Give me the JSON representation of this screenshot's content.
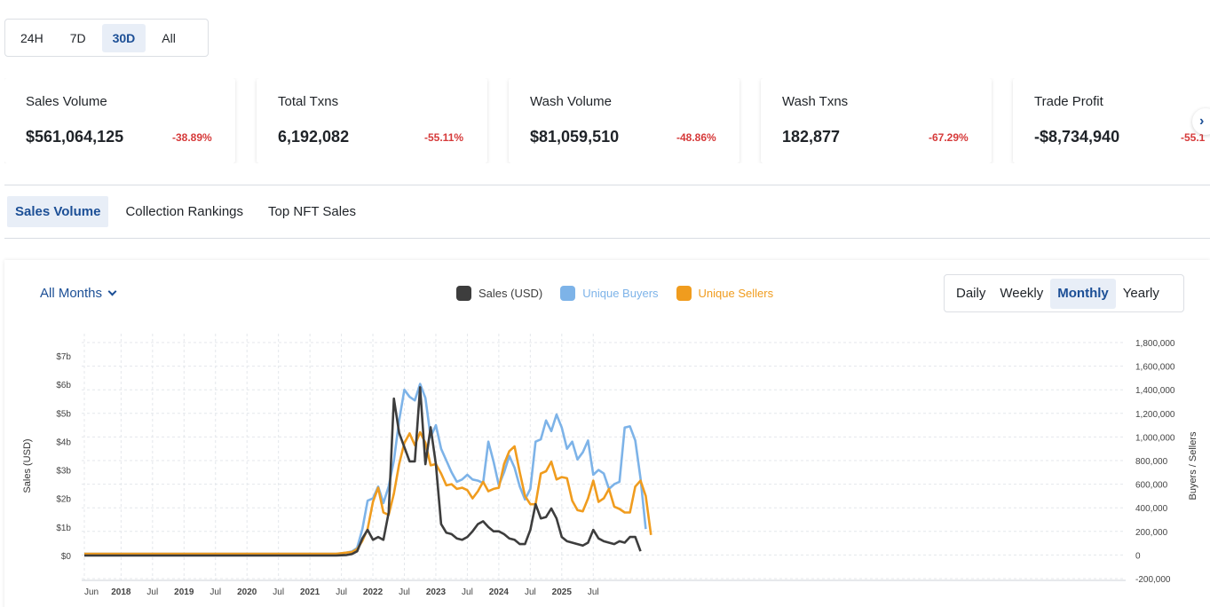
{
  "period_buttons": [
    {
      "label": "24H",
      "active": false
    },
    {
      "label": "7D",
      "active": false
    },
    {
      "label": "30D",
      "active": true
    },
    {
      "label": "All",
      "active": false
    }
  ],
  "stats": [
    {
      "title": "Sales Volume",
      "value": "$561,064,125",
      "change": "-38.89%"
    },
    {
      "title": "Total Txns",
      "value": "6,192,082",
      "change": "-55.11%"
    },
    {
      "title": "Wash Volume",
      "value": "$81,059,510",
      "change": "-48.86%"
    },
    {
      "title": "Wash Txns",
      "value": "182,877",
      "change": "-67.29%"
    },
    {
      "title": "Trade Profit",
      "value": "-$8,734,940",
      "change": "-55.1"
    }
  ],
  "next_arrow_icon": "chevron-right-icon",
  "tabs": [
    {
      "label": "Sales Volume",
      "active": true
    },
    {
      "label": "Collection Rankings",
      "active": false
    },
    {
      "label": "Top NFT Sales",
      "active": false
    }
  ],
  "months_filter": "All Months",
  "granularity": [
    {
      "label": "Daily",
      "active": false
    },
    {
      "label": "Weekly",
      "active": false
    },
    {
      "label": "Monthly",
      "active": true
    },
    {
      "label": "Yearly",
      "active": false
    }
  ],
  "colors": {
    "sales": "#3d3d3d",
    "buyers": "#7db3e8",
    "sellers": "#f09c1e",
    "negative": "#d63a3a",
    "accent": "#1c4f96"
  },
  "chart_data": {
    "type": "line",
    "x_tick_labels": [
      "Jun",
      "2018",
      "Jul",
      "2019",
      "Jul",
      "2020",
      "Jul",
      "2021",
      "Jul",
      "2022",
      "Jul",
      "2023",
      "Jul",
      "2024",
      "Jul",
      "2025",
      "Jul"
    ],
    "y_left_label": "Sales (USD)",
    "y_left_ticks": [
      "$0",
      "$1b",
      "$2b",
      "$3b",
      "$4b",
      "$5b",
      "$6b",
      "$7b"
    ],
    "y_left_range": [
      0,
      7000000000
    ],
    "y_right_label": "Buyers / Sellers",
    "y_right_ticks": [
      "-200,000",
      "0",
      "200,000",
      "400,000",
      "600,000",
      "800,000",
      "1,000,000",
      "1,200,000",
      "1,400,000",
      "1,600,000",
      "1,800,000"
    ],
    "y_right_range": [
      -200000,
      1800000
    ],
    "x_start": "2017-06",
    "series": [
      {
        "name": "Sales (USD)",
        "axis": "left",
        "color": "#3d3d3d",
        "points": [
          [
            0,
            0
          ],
          [
            48,
            0
          ],
          [
            49,
            0.01
          ],
          [
            50,
            0.02
          ],
          [
            51,
            0.05
          ],
          [
            52,
            0.15
          ],
          [
            53,
            0.6
          ],
          [
            54,
            0.9
          ],
          [
            55,
            0.55
          ],
          [
            56,
            0.65
          ],
          [
            57,
            0.55
          ],
          [
            58,
            1.5
          ],
          [
            59,
            5.5
          ],
          [
            60,
            4.3
          ],
          [
            61,
            3.8
          ],
          [
            62,
            3.3
          ],
          [
            63,
            3.3
          ],
          [
            64,
            5.9
          ],
          [
            65,
            3.2
          ],
          [
            66,
            4.5
          ],
          [
            67,
            3.2
          ],
          [
            68,
            1.1
          ],
          [
            69,
            0.8
          ],
          [
            70,
            0.75
          ],
          [
            71,
            0.6
          ],
          [
            72,
            0.55
          ],
          [
            73,
            0.65
          ],
          [
            74,
            0.85
          ],
          [
            75,
            1.1
          ],
          [
            76,
            1.2
          ],
          [
            77,
            1.0
          ],
          [
            78,
            0.85
          ],
          [
            79,
            0.85
          ],
          [
            80,
            0.75
          ],
          [
            81,
            0.6
          ],
          [
            82,
            0.55
          ],
          [
            83,
            0.4
          ],
          [
            84,
            0.4
          ],
          [
            85,
            0.9
          ],
          [
            86,
            1.8
          ],
          [
            87,
            1.3
          ],
          [
            88,
            1.35
          ],
          [
            89,
            1.65
          ],
          [
            90,
            1.3
          ],
          [
            91,
            0.65
          ],
          [
            92,
            0.5
          ],
          [
            93,
            0.45
          ],
          [
            94,
            0.4
          ],
          [
            95,
            0.35
          ],
          [
            96,
            0.45
          ],
          [
            97,
            0.9
          ],
          [
            98,
            0.6
          ],
          [
            99,
            0.5
          ],
          [
            100,
            0.45
          ],
          [
            101,
            0.4
          ],
          [
            102,
            0.5
          ],
          [
            103,
            0.45
          ],
          [
            104,
            0.65
          ],
          [
            105,
            0.65
          ],
          [
            106,
            0.15
          ]
        ]
      },
      {
        "name": "Unique Buyers",
        "axis": "right",
        "color": "#7db3e8",
        "points": [
          [
            0,
            10000
          ],
          [
            48,
            10000
          ],
          [
            49,
            15000
          ],
          [
            50,
            20000
          ],
          [
            51,
            30000
          ],
          [
            52,
            60000
          ],
          [
            53,
            220000
          ],
          [
            54,
            460000
          ],
          [
            55,
            480000
          ],
          [
            56,
            580000
          ],
          [
            57,
            440000
          ],
          [
            58,
            580000
          ],
          [
            59,
            800000
          ],
          [
            60,
            1140000
          ],
          [
            61,
            1400000
          ],
          [
            62,
            1340000
          ],
          [
            63,
            1310000
          ],
          [
            64,
            1450000
          ],
          [
            65,
            1330000
          ],
          [
            66,
            1000000
          ],
          [
            67,
            1100000
          ],
          [
            68,
            900000
          ],
          [
            69,
            800000
          ],
          [
            70,
            700000
          ],
          [
            71,
            620000
          ],
          [
            72,
            640000
          ],
          [
            73,
            680000
          ],
          [
            74,
            640000
          ],
          [
            75,
            630000
          ],
          [
            76,
            610000
          ],
          [
            77,
            960000
          ],
          [
            78,
            790000
          ],
          [
            79,
            590000
          ],
          [
            80,
            700000
          ],
          [
            81,
            840000
          ],
          [
            82,
            740000
          ],
          [
            83,
            580000
          ],
          [
            84,
            470000
          ],
          [
            85,
            560000
          ],
          [
            86,
            960000
          ],
          [
            87,
            980000
          ],
          [
            88,
            1140000
          ],
          [
            89,
            1050000
          ],
          [
            90,
            1190000
          ],
          [
            91,
            1080000
          ],
          [
            92,
            900000
          ],
          [
            93,
            960000
          ],
          [
            94,
            810000
          ],
          [
            95,
            870000
          ],
          [
            96,
            970000
          ],
          [
            97,
            680000
          ],
          [
            98,
            720000
          ],
          [
            99,
            690000
          ],
          [
            100,
            560000
          ],
          [
            101,
            600000
          ],
          [
            102,
            620000
          ],
          [
            103,
            1080000
          ],
          [
            104,
            1090000
          ],
          [
            105,
            970000
          ],
          [
            106,
            650000
          ],
          [
            107,
            220000
          ]
        ]
      },
      {
        "name": "Unique Sellers",
        "axis": "right",
        "color": "#f09c1e",
        "points": [
          [
            0,
            10000
          ],
          [
            48,
            10000
          ],
          [
            49,
            15000
          ],
          [
            50,
            20000
          ],
          [
            51,
            25000
          ],
          [
            52,
            50000
          ],
          [
            53,
            120000
          ],
          [
            54,
            220000
          ],
          [
            55,
            450000
          ],
          [
            56,
            570000
          ],
          [
            57,
            360000
          ],
          [
            58,
            340000
          ],
          [
            59,
            520000
          ],
          [
            60,
            770000
          ],
          [
            61,
            950000
          ],
          [
            62,
            1030000
          ],
          [
            63,
            930000
          ],
          [
            64,
            1040000
          ],
          [
            65,
            950000
          ],
          [
            66,
            760000
          ],
          [
            67,
            770000
          ],
          [
            68,
            690000
          ],
          [
            69,
            590000
          ],
          [
            70,
            600000
          ],
          [
            71,
            560000
          ],
          [
            72,
            570000
          ],
          [
            73,
            550000
          ],
          [
            74,
            480000
          ],
          [
            75,
            540000
          ],
          [
            76,
            620000
          ],
          [
            77,
            540000
          ],
          [
            78,
            560000
          ],
          [
            79,
            570000
          ],
          [
            80,
            770000
          ],
          [
            81,
            880000
          ],
          [
            82,
            920000
          ],
          [
            83,
            700000
          ],
          [
            84,
            500000
          ],
          [
            85,
            430000
          ],
          [
            86,
            430000
          ],
          [
            87,
            690000
          ],
          [
            88,
            710000
          ],
          [
            89,
            790000
          ],
          [
            90,
            640000
          ],
          [
            91,
            660000
          ],
          [
            92,
            650000
          ],
          [
            93,
            460000
          ],
          [
            94,
            380000
          ],
          [
            95,
            370000
          ],
          [
            96,
            480000
          ],
          [
            97,
            630000
          ],
          [
            98,
            450000
          ],
          [
            99,
            480000
          ],
          [
            100,
            560000
          ],
          [
            101,
            410000
          ],
          [
            102,
            390000
          ],
          [
            103,
            360000
          ],
          [
            104,
            360000
          ],
          [
            105,
            580000
          ],
          [
            106,
            630000
          ],
          [
            107,
            500000
          ],
          [
            108,
            170000
          ]
        ]
      }
    ]
  }
}
